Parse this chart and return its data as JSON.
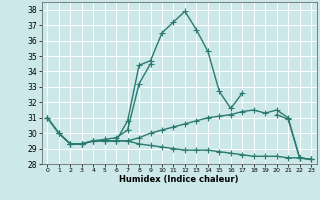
{
  "x": [
    0,
    1,
    2,
    3,
    4,
    5,
    6,
    7,
    8,
    9,
    10,
    11,
    12,
    13,
    14,
    15,
    16,
    17,
    18,
    19,
    20,
    21,
    22,
    23
  ],
  "line1": [
    31.0,
    30.0,
    29.3,
    29.3,
    29.5,
    29.5,
    29.5,
    30.8,
    34.4,
    34.7,
    36.5,
    37.2,
    37.9,
    36.7,
    35.3,
    32.7,
    31.6,
    32.6,
    null,
    null,
    31.2,
    30.9,
    28.4,
    28.3
  ],
  "line2": [
    null,
    null,
    29.3,
    29.3,
    29.5,
    29.6,
    29.7,
    30.2,
    33.2,
    34.5,
    null,
    null,
    null,
    null,
    null,
    null,
    null,
    null,
    null,
    null,
    null,
    null,
    null,
    null
  ],
  "line3": [
    31.0,
    30.0,
    29.3,
    29.3,
    29.5,
    29.5,
    29.5,
    29.5,
    29.3,
    29.2,
    29.1,
    29.0,
    28.9,
    28.9,
    28.9,
    28.8,
    28.7,
    28.6,
    28.5,
    28.5,
    28.5,
    28.4,
    28.4,
    28.3
  ],
  "line4": [
    31.0,
    30.0,
    29.3,
    29.3,
    29.5,
    29.5,
    29.5,
    29.5,
    29.7,
    30.0,
    30.2,
    30.4,
    30.6,
    30.8,
    31.0,
    31.1,
    31.2,
    31.4,
    31.5,
    31.3,
    31.5,
    31.0,
    28.4,
    28.3
  ],
  "color": "#2a7a6f",
  "bg_color": "#cce8e8",
  "grid_color": "#ffffff",
  "xlabel": "Humidex (Indice chaleur)",
  "ylim": [
    28,
    38.5
  ],
  "xlim": [
    -0.5,
    23.5
  ],
  "yticks": [
    28,
    29,
    30,
    31,
    32,
    33,
    34,
    35,
    36,
    37,
    38
  ],
  "xticks": [
    0,
    1,
    2,
    3,
    4,
    5,
    6,
    7,
    8,
    9,
    10,
    11,
    12,
    13,
    14,
    15,
    16,
    17,
    18,
    19,
    20,
    21,
    22,
    23
  ],
  "xtick_labels": [
    "0",
    "1",
    "2",
    "3",
    "4",
    "5",
    "6",
    "7",
    "8",
    "9",
    "10",
    "11",
    "12",
    "13",
    "14",
    "15",
    "16",
    "17",
    "18",
    "19",
    "20",
    "21",
    "22",
    "23"
  ],
  "marker": "+",
  "linewidth": 1.0,
  "markersize": 4
}
